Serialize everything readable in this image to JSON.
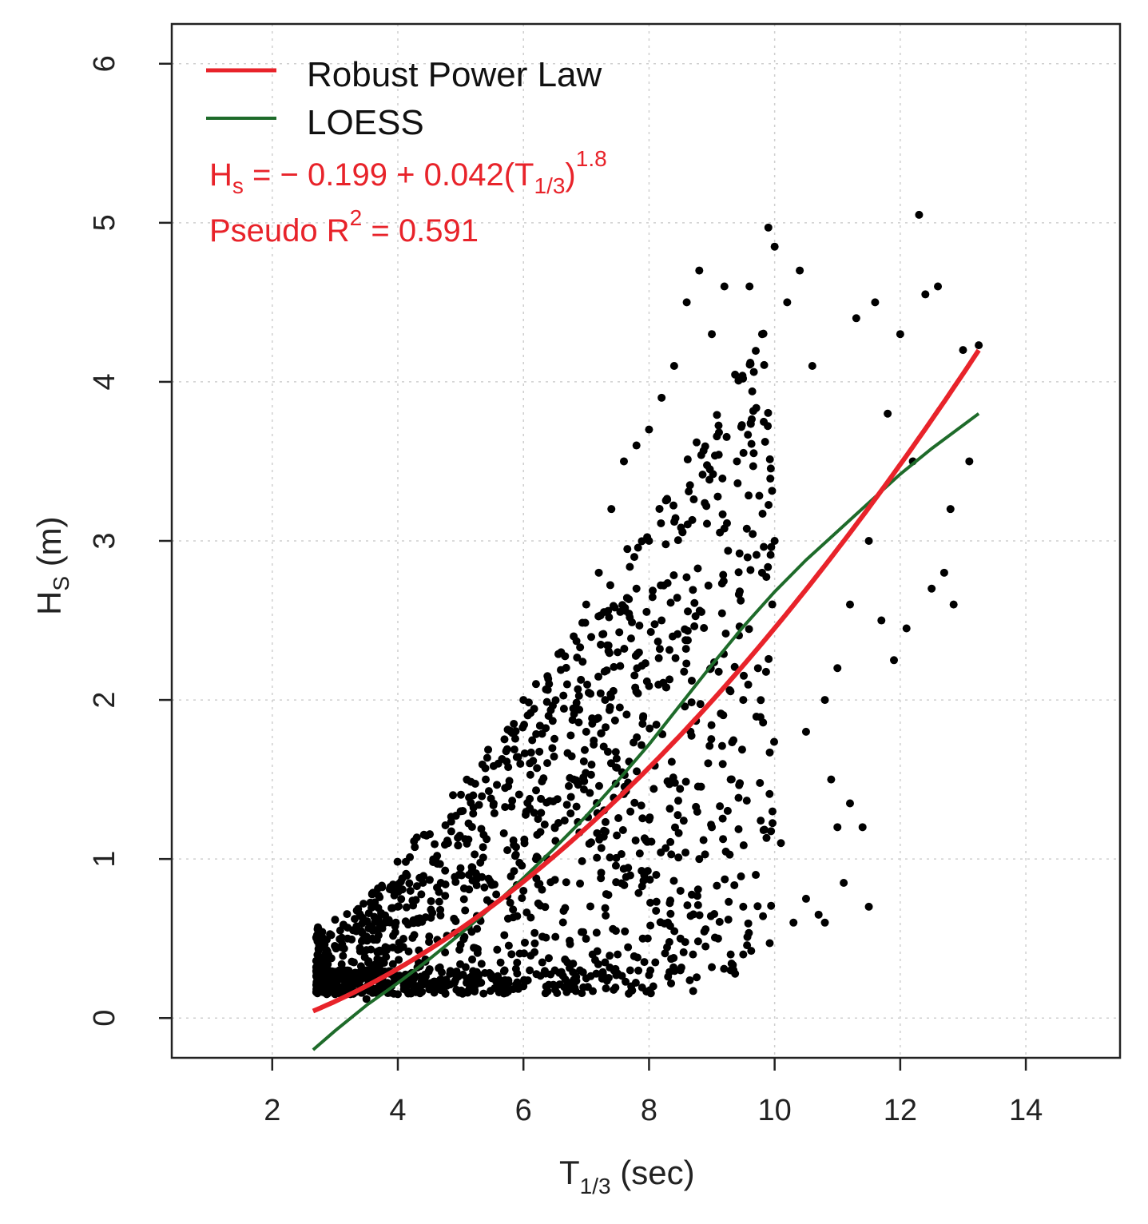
{
  "chart_data": {
    "type": "scatter",
    "xlabel": {
      "main": "T",
      "sub": "1/3",
      "unit": " (sec)"
    },
    "ylabel": {
      "main": "H",
      "sub": "S",
      "unit": " (m)"
    },
    "xlim": [
      0.4,
      15.5
    ],
    "ylim": [
      -0.25,
      6.25
    ],
    "x_ticks": [
      "2",
      "4",
      "6",
      "8",
      "10",
      "12",
      "14"
    ],
    "x_tick_values": [
      2,
      4,
      6,
      8,
      10,
      12,
      14
    ],
    "y_ticks": [
      "0",
      "1",
      "2",
      "3",
      "4",
      "5",
      "6"
    ],
    "y_tick_values": [
      0,
      1,
      2,
      3,
      4,
      5,
      6
    ],
    "grid": true,
    "legend_position": "top-left",
    "legend": [
      {
        "name": "Robust Power Law",
        "color": "#e8232a"
      },
      {
        "name": "LOESS",
        "color": "#1e6b2a"
      }
    ],
    "annotations": {
      "equation": {
        "lhs_main": "H",
        "lhs_sub": "s",
        "body": " = − 0.199 + 0.042(T",
        "paren_sub": "1",
        "slash": "/",
        "paren_sub2": "3",
        "close": ")",
        "exponent": "1.8",
        "color": "#e8232a"
      },
      "r2": {
        "prefix": "Pseudo R",
        "sup": "2",
        "suffix": " = 0.591",
        "color": "#e8232a"
      }
    },
    "series": [
      {
        "name": "Robust Power Law",
        "type": "line",
        "color": "#e8232a",
        "equation": {
          "a": -0.199,
          "b": 0.042,
          "c": 1.8
        },
        "x_range": [
          2.65,
          13.25
        ]
      },
      {
        "name": "LOESS",
        "type": "line",
        "color": "#1e6b2a",
        "x": [
          2.65,
          3.0,
          3.5,
          4.0,
          4.5,
          5.0,
          5.5,
          6.0,
          6.5,
          7.0,
          7.5,
          8.0,
          8.5,
          9.0,
          9.5,
          10.0,
          10.5,
          11.0,
          11.5,
          12.0,
          12.5,
          13.25
        ],
        "y": [
          -0.2,
          -0.08,
          0.08,
          0.22,
          0.37,
          0.53,
          0.7,
          0.88,
          1.07,
          1.27,
          1.49,
          1.72,
          1.97,
          2.22,
          2.46,
          2.68,
          2.88,
          3.06,
          3.24,
          3.42,
          3.58,
          3.8
        ]
      },
      {
        "name": "observations",
        "type": "scatter",
        "color": "#000000",
        "points": [
          [
            2.7,
            0.32
          ],
          [
            2.8,
            0.38
          ],
          [
            2.9,
            0.3
          ],
          [
            3.0,
            0.45
          ],
          [
            3.1,
            0.28
          ],
          [
            3.2,
            0.5
          ],
          [
            3.3,
            0.35
          ],
          [
            3.4,
            0.42
          ],
          [
            3.5,
            0.3
          ],
          [
            3.6,
            0.55
          ],
          [
            3.7,
            0.25
          ],
          [
            3.8,
            0.6
          ],
          [
            3.9,
            0.2
          ],
          [
            4.0,
            0.7
          ],
          [
            4.1,
            0.22
          ],
          [
            4.2,
            0.8
          ],
          [
            4.3,
            0.2
          ],
          [
            4.4,
            0.85
          ],
          [
            4.5,
            0.18
          ],
          [
            4.6,
            1.0
          ],
          [
            4.7,
            0.2
          ],
          [
            4.8,
            1.1
          ],
          [
            4.9,
            0.22
          ],
          [
            5.0,
            1.3
          ],
          [
            5.1,
            0.25
          ],
          [
            5.2,
            1.4
          ],
          [
            5.3,
            0.22
          ],
          [
            5.4,
            1.5
          ],
          [
            5.5,
            0.25
          ],
          [
            5.6,
            1.6
          ],
          [
            5.7,
            0.3
          ],
          [
            5.8,
            1.8
          ],
          [
            5.9,
            0.28
          ],
          [
            6.0,
            2.0
          ],
          [
            6.1,
            0.3
          ],
          [
            6.2,
            2.1
          ],
          [
            6.3,
            0.35
          ],
          [
            6.4,
            1.9
          ],
          [
            6.5,
            0.3
          ],
          [
            6.6,
            2.3
          ],
          [
            6.7,
            0.35
          ],
          [
            6.8,
            2.4
          ],
          [
            6.9,
            0.3
          ],
          [
            7.0,
            2.6
          ],
          [
            7.1,
            0.4
          ],
          [
            7.2,
            2.8
          ],
          [
            7.3,
            0.35
          ],
          [
            7.4,
            3.2
          ],
          [
            7.5,
            0.4
          ],
          [
            7.6,
            3.5
          ],
          [
            7.7,
            0.3
          ],
          [
            7.8,
            3.6
          ],
          [
            7.9,
            0.5
          ],
          [
            8.0,
            3.7
          ],
          [
            8.1,
            0.35
          ],
          [
            8.2,
            3.9
          ],
          [
            8.3,
            0.6
          ],
          [
            8.4,
            4.1
          ],
          [
            8.5,
            0.5
          ],
          [
            8.6,
            4.5
          ],
          [
            8.7,
            0.4
          ],
          [
            8.8,
            4.7
          ],
          [
            8.9,
            0.45
          ],
          [
            9.0,
            4.3
          ],
          [
            9.1,
            0.5
          ],
          [
            9.2,
            4.6
          ],
          [
            9.3,
            0.4
          ],
          [
            9.4,
            3.5
          ],
          [
            9.5,
            0.7
          ],
          [
            9.6,
            4.6
          ],
          [
            9.7,
            0.9
          ],
          [
            9.8,
            4.3
          ],
          [
            9.9,
            4.97
          ],
          [
            10.0,
            4.85
          ],
          [
            10.1,
            1.1
          ],
          [
            10.2,
            4.5
          ],
          [
            10.3,
            0.6
          ],
          [
            10.4,
            4.7
          ],
          [
            10.5,
            0.75
          ],
          [
            10.6,
            4.1
          ],
          [
            10.7,
            0.65
          ],
          [
            10.8,
            0.6
          ],
          [
            10.9,
            1.5
          ],
          [
            11.0,
            1.2
          ],
          [
            11.1,
            0.85
          ],
          [
            11.2,
            1.35
          ],
          [
            11.3,
            4.4
          ],
          [
            11.4,
            1.2
          ],
          [
            11.5,
            0.7
          ],
          [
            11.6,
            4.5
          ],
          [
            11.7,
            2.5
          ],
          [
            11.8,
            3.8
          ],
          [
            11.9,
            2.25
          ],
          [
            12.0,
            4.3
          ],
          [
            12.1,
            2.45
          ],
          [
            12.2,
            3.5
          ],
          [
            12.3,
            5.05
          ],
          [
            12.4,
            4.55
          ],
          [
            12.5,
            2.7
          ],
          [
            12.6,
            4.6
          ],
          [
            12.7,
            2.8
          ],
          [
            12.8,
            3.2
          ],
          [
            12.85,
            2.6
          ],
          [
            13.0,
            4.2
          ],
          [
            13.1,
            3.5
          ],
          [
            13.25,
            4.23
          ],
          [
            3.0,
            0.15
          ],
          [
            3.5,
            0.12
          ],
          [
            4.0,
            0.15
          ],
          [
            5.0,
            0.16
          ],
          [
            6.0,
            0.2
          ],
          [
            7.0,
            0.25
          ],
          [
            7.5,
            0.28
          ],
          [
            8.0,
            0.27
          ],
          [
            8.5,
            0.3
          ],
          [
            9.0,
            0.32
          ],
          [
            9.3,
            0.3
          ],
          [
            9.5,
            0.4
          ],
          [
            10.5,
            1.8
          ],
          [
            10.8,
            2.0
          ],
          [
            11.0,
            2.2
          ],
          [
            11.2,
            2.6
          ],
          [
            11.5,
            3.0
          ],
          [
            10.0,
            3.0
          ],
          [
            9.8,
            2.8
          ],
          [
            9.5,
            2.0
          ],
          [
            9.3,
            1.5
          ],
          [
            9.0,
            1.2
          ],
          [
            8.8,
            1.0
          ],
          [
            8.5,
            0.8
          ],
          [
            8.2,
            2.5
          ],
          [
            8.0,
            3.0
          ],
          [
            7.8,
            2.7
          ],
          [
            7.5,
            2.3
          ],
          [
            7.3,
            2.0
          ],
          [
            7.0,
            1.8
          ],
          [
            6.8,
            1.5
          ],
          [
            6.5,
            1.2
          ],
          [
            6.2,
            1.0
          ],
          [
            6.0,
            0.8
          ]
        ]
      }
    ]
  }
}
